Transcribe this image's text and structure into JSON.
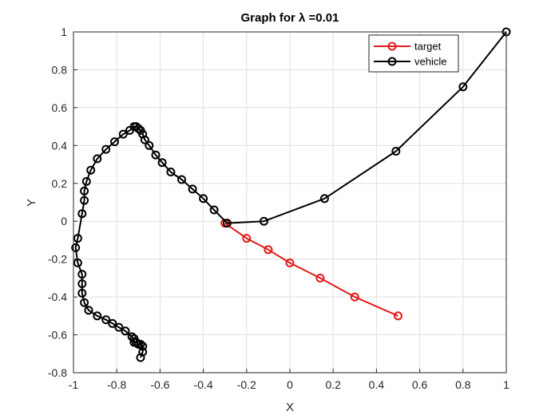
{
  "chart_data": {
    "type": "line",
    "title": "Graph for λ =0.01",
    "xlabel": "X",
    "ylabel": "Y",
    "xlim": [
      -1,
      1
    ],
    "ylim": [
      -0.8,
      1
    ],
    "grid": true,
    "x_ticks": [
      "-1",
      "-0.8",
      "-0.6",
      "-0.4",
      "-0.2",
      "0",
      "0.2",
      "0.4",
      "0.6",
      "0.8",
      "1"
    ],
    "y_ticks": [
      "-0.8",
      "-0.6",
      "-0.4",
      "-0.2",
      "0",
      "0.2",
      "0.4",
      "0.6",
      "0.8",
      "1"
    ],
    "legend_position": "top-right",
    "series": [
      {
        "name": "target",
        "color": "#e41a1a",
        "marker": "circle",
        "x": [
          -0.3,
          -0.2,
          -0.1,
          0.0,
          0.14,
          0.3,
          0.5
        ],
        "y": [
          -0.01,
          -0.09,
          -0.15,
          -0.22,
          -0.3,
          -0.4,
          -0.5
        ]
      },
      {
        "name": "vehicle",
        "color": "#000000",
        "marker": "circle",
        "x": [
          1.0,
          0.8,
          0.49,
          0.16,
          -0.12,
          -0.29,
          -0.35,
          -0.4,
          -0.45,
          -0.5,
          -0.55,
          -0.59,
          -0.62,
          -0.65,
          -0.67,
          -0.68,
          -0.69,
          -0.7,
          -0.71,
          -0.72,
          -0.74,
          -0.77,
          -0.81,
          -0.85,
          -0.89,
          -0.92,
          -0.94,
          -0.95,
          -0.95,
          -0.96,
          -0.98,
          -0.99,
          -0.98,
          -0.96,
          -0.96,
          -0.96,
          -0.95,
          -0.93,
          -0.89,
          -0.85,
          -0.82,
          -0.79,
          -0.76,
          -0.73,
          -0.72,
          -0.72,
          -0.71,
          -0.7,
          -0.69,
          -0.68,
          -0.68,
          -0.69
        ],
        "y": [
          1.0,
          0.71,
          0.37,
          0.12,
          0.0,
          -0.01,
          0.06,
          0.12,
          0.17,
          0.22,
          0.26,
          0.31,
          0.35,
          0.4,
          0.43,
          0.46,
          0.48,
          0.49,
          0.5,
          0.5,
          0.48,
          0.46,
          0.42,
          0.38,
          0.33,
          0.27,
          0.21,
          0.16,
          0.11,
          0.04,
          -0.09,
          -0.14,
          -0.22,
          -0.28,
          -0.33,
          -0.38,
          -0.43,
          -0.47,
          -0.5,
          -0.52,
          -0.54,
          -0.56,
          -0.58,
          -0.61,
          -0.62,
          -0.64,
          -0.64,
          -0.65,
          -0.65,
          -0.66,
          -0.69,
          -0.72
        ]
      }
    ]
  }
}
